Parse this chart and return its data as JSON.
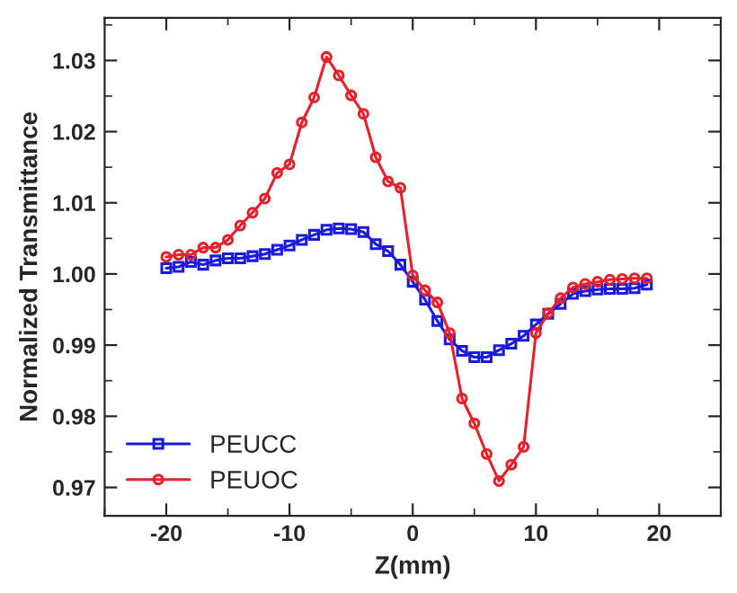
{
  "chart_data": {
    "type": "line",
    "xlabel": "Z(mm)",
    "ylabel": "Normalized Transmittance",
    "x": [
      -20,
      -19,
      -18,
      -17,
      -16,
      -15,
      -14,
      -13,
      -12,
      -11,
      -10,
      -9,
      -8,
      -7,
      -6,
      -5,
      -4,
      -3,
      -2,
      -1,
      0,
      1,
      2,
      3,
      4,
      5,
      6,
      7,
      8,
      9,
      10,
      11,
      12,
      13,
      14,
      15,
      16,
      17,
      18,
      19
    ],
    "series": [
      {
        "name": "PEUCC",
        "color": "#1a1adf",
        "marker": "square",
        "values": [
          1.0008,
          1.001,
          1.0017,
          1.0013,
          1.0019,
          1.0022,
          1.0022,
          1.0025,
          1.0028,
          1.0034,
          1.004,
          1.0048,
          1.0055,
          1.0062,
          1.0064,
          1.0063,
          1.0059,
          1.0042,
          1.0032,
          1.0013,
          0.9989,
          0.9964,
          0.9934,
          0.9908,
          0.9892,
          0.9883,
          0.9883,
          0.9893,
          0.9902,
          0.9913,
          0.9929,
          0.9944,
          0.9958,
          0.9972,
          0.9976,
          0.9978,
          0.9979,
          0.9979,
          0.998,
          0.9985
        ]
      },
      {
        "name": "PEUOC",
        "color": "#e8202a",
        "marker": "circle",
        "values": [
          1.0024,
          1.0027,
          1.0027,
          1.0037,
          1.0037,
          1.0048,
          1.0068,
          1.0086,
          1.0106,
          1.0142,
          1.0154,
          1.0213,
          1.0248,
          1.0305,
          1.0279,
          1.0251,
          1.0225,
          1.0164,
          1.013,
          1.0121,
          0.9998,
          0.9977,
          0.996,
          0.9917,
          0.9825,
          0.979,
          0.9747,
          0.9709,
          0.9732,
          0.9757,
          0.9917,
          0.9945,
          0.9966,
          0.9981,
          0.9986,
          0.9989,
          0.9992,
          0.9993,
          0.9994,
          0.9994
        ]
      }
    ],
    "xlim": [
      -25,
      25
    ],
    "xticks": [
      -20,
      -10,
      0,
      10,
      20
    ],
    "ylim": [
      0.966,
      1.036
    ],
    "yticks": [
      0.97,
      0.98,
      0.99,
      {
        "value": 1.0,
        "label": "1.00"
      },
      1.01,
      1.02,
      1.03
    ],
    "grid": false,
    "legend": "bottom left",
    "line_style": "solid"
  }
}
